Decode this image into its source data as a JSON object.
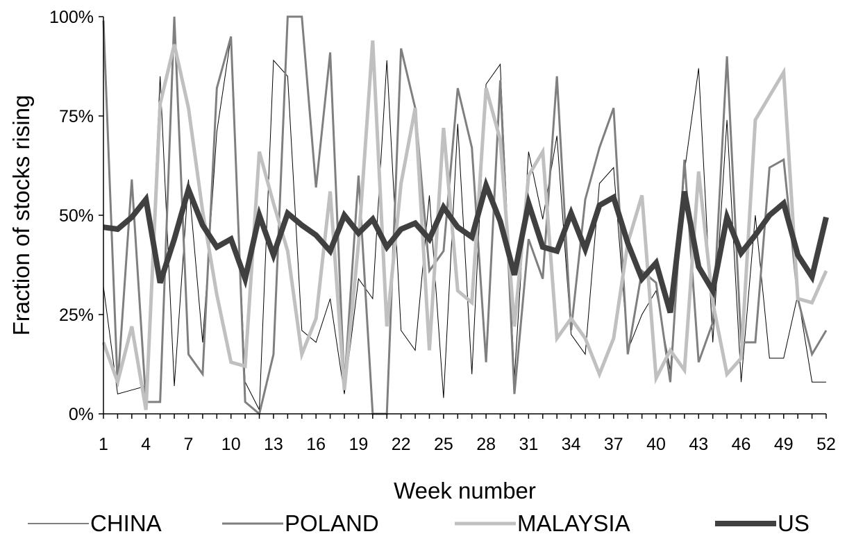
{
  "chart_data": {
    "type": "line",
    "title": "",
    "xlabel": "Week number",
    "ylabel": "Fraction of stocks rising",
    "xlim": [
      1,
      52
    ],
    "ylim": [
      0,
      1
    ],
    "x_tick_labels": [
      "1",
      "4",
      "7",
      "10",
      "13",
      "16",
      "19",
      "22",
      "25",
      "28",
      "31",
      "34",
      "37",
      "40",
      "43",
      "46",
      "49",
      "52"
    ],
    "y_tick_labels": [
      "0%",
      "25%",
      "50%",
      "75%",
      "100%"
    ],
    "y_tick_values": [
      0,
      0.25,
      0.5,
      0.75,
      1.0
    ],
    "grid": false,
    "legend_position": "bottom",
    "x": [
      1,
      2,
      3,
      4,
      5,
      6,
      7,
      8,
      9,
      10,
      11,
      12,
      13,
      14,
      15,
      16,
      17,
      18,
      19,
      20,
      21,
      22,
      23,
      24,
      25,
      26,
      27,
      28,
      29,
      30,
      31,
      32,
      33,
      34,
      35,
      36,
      37,
      38,
      39,
      40,
      41,
      42,
      43,
      44,
      45,
      46,
      47,
      48,
      49,
      50,
      51,
      52
    ],
    "series": [
      {
        "name": "CHINA",
        "color": "#000000",
        "width": 1,
        "values": [
          0.32,
          0.05,
          0.06,
          0.07,
          0.85,
          0.07,
          0.59,
          0.18,
          0.71,
          0.95,
          0.08,
          0.01,
          0.89,
          0.85,
          0.21,
          0.18,
          0.29,
          0.05,
          0.34,
          0.29,
          0.89,
          0.21,
          0.16,
          0.55,
          0.04,
          0.73,
          0.1,
          0.83,
          0.88,
          0.09,
          0.66,
          0.49,
          0.7,
          0.2,
          0.15,
          0.58,
          0.62,
          0.16,
          0.25,
          0.31,
          0.11,
          0.61,
          0.87,
          0.18,
          0.74,
          0.08,
          0.5,
          0.14,
          0.14,
          0.3,
          0.08,
          0.08
        ]
      },
      {
        "name": "POLAND",
        "color": "#7f7f7f",
        "width": 3,
        "values": [
          0.99,
          0.07,
          0.59,
          0.03,
          0.03,
          1.0,
          0.15,
          0.1,
          0.82,
          0.95,
          0.03,
          0.0,
          0.15,
          1.0,
          1.0,
          0.57,
          0.91,
          0.07,
          0.6,
          0.0,
          0.0,
          0.92,
          0.77,
          0.36,
          0.41,
          0.82,
          0.67,
          0.13,
          0.84,
          0.05,
          0.44,
          0.34,
          0.85,
          0.21,
          0.54,
          0.67,
          0.77,
          0.15,
          0.36,
          0.33,
          0.08,
          0.64,
          0.13,
          0.23,
          0.9,
          0.18,
          0.18,
          0.62,
          0.64,
          0.29,
          0.15,
          0.21
        ]
      },
      {
        "name": "MALAYSIA",
        "color": "#c0c0c0",
        "width": 5,
        "values": [
          0.18,
          0.08,
          0.22,
          0.01,
          0.78,
          0.93,
          0.77,
          0.51,
          0.3,
          0.13,
          0.12,
          0.66,
          0.53,
          0.41,
          0.15,
          0.24,
          0.56,
          0.06,
          0.43,
          0.94,
          0.22,
          0.58,
          0.77,
          0.16,
          0.72,
          0.31,
          0.28,
          0.82,
          0.69,
          0.22,
          0.6,
          0.66,
          0.19,
          0.24,
          0.19,
          0.1,
          0.19,
          0.43,
          0.55,
          0.09,
          0.16,
          0.11,
          0.61,
          0.28,
          0.1,
          0.14,
          0.74,
          0.8,
          0.86,
          0.29,
          0.28,
          0.36
        ]
      },
      {
        "name": "US",
        "color": "#404040",
        "width": 8,
        "values": [
          0.47,
          0.465,
          0.495,
          0.54,
          0.33,
          0.44,
          0.565,
          0.475,
          0.42,
          0.44,
          0.34,
          0.5,
          0.4,
          0.505,
          0.475,
          0.45,
          0.41,
          0.5,
          0.455,
          0.49,
          0.42,
          0.465,
          0.48,
          0.44,
          0.52,
          0.47,
          0.445,
          0.575,
          0.485,
          0.35,
          0.53,
          0.42,
          0.41,
          0.505,
          0.415,
          0.525,
          0.545,
          0.43,
          0.34,
          0.38,
          0.255,
          0.56,
          0.37,
          0.31,
          0.495,
          0.405,
          0.45,
          0.5,
          0.53,
          0.4,
          0.345,
          0.495
        ]
      }
    ]
  }
}
